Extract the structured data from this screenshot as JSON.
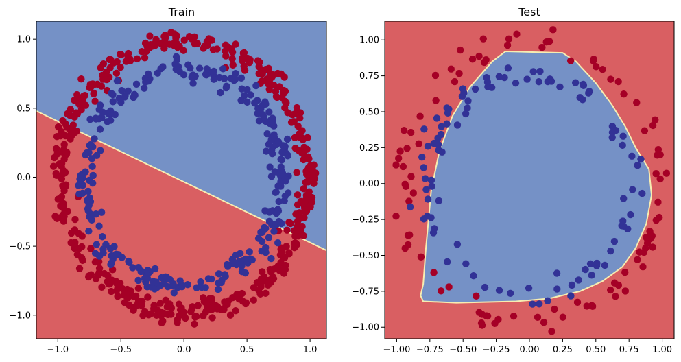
{
  "colors": {
    "blue_region": "#7591c6",
    "red_region": "#d95f62",
    "boundary": "#f7edb2",
    "blue_point": "#323296",
    "red_point": "#a50026"
  },
  "chart_data": [
    {
      "type": "scatter",
      "title": "Train",
      "xlabel": "",
      "ylabel": "",
      "xlim": [
        -1.17,
        1.13
      ],
      "ylim": [
        -1.17,
        1.13
      ],
      "xticks": [
        -1.0,
        -0.5,
        0.0,
        0.5,
        1.0
      ],
      "yticks": [
        -1.0,
        -0.5,
        0.0,
        0.5,
        1.0
      ],
      "xtick_labels": [
        "−1.0",
        "−0.5",
        "0.0",
        "0.5",
        "1.0"
      ],
      "ytick_labels": [
        "−1.0",
        "−0.5",
        "0.0",
        "0.5",
        "1.0"
      ],
      "grid": false,
      "decision_boundary": {
        "kind": "line",
        "points": [
          [
            -1.17,
            0.48
          ],
          [
            1.13,
            -0.53
          ]
        ],
        "above": "blue",
        "below": "red"
      },
      "series": [
        {
          "class": "outer_circle",
          "radius": 0.98,
          "color": "red",
          "count": 500,
          "noise": 0.035
        },
        {
          "class": "inner_circle",
          "radius": 0.78,
          "color": "blue",
          "count": 300,
          "noise": 0.035
        }
      ]
    },
    {
      "type": "scatter",
      "title": "Test",
      "xlabel": "",
      "ylabel": "",
      "xlim": [
        -1.09,
        1.09
      ],
      "ylim": [
        -1.08,
        1.13
      ],
      "xticks": [
        -1.0,
        -0.75,
        -0.5,
        -0.25,
        0.0,
        0.25,
        0.5,
        0.75,
        1.0
      ],
      "yticks": [
        -1.0,
        -0.75,
        -0.5,
        -0.25,
        0.0,
        0.25,
        0.5,
        0.75,
        1.0
      ],
      "xtick_labels": [
        "−1.00",
        "−0.75",
        "−0.50",
        "−0.25",
        "0.00",
        "0.25",
        "0.50",
        "0.75",
        "1.00"
      ],
      "ytick_labels": [
        "−1.00",
        "−0.75",
        "−0.50",
        "−0.25",
        "0.00",
        "0.25",
        "0.50",
        "0.75",
        "1.00"
      ],
      "grid": false,
      "decision_boundary": {
        "kind": "polygon",
        "inside": "blue",
        "outside": "red",
        "points": [
          [
            -0.82,
            -0.78
          ],
          [
            -0.8,
            -0.7
          ],
          [
            -0.78,
            -0.45
          ],
          [
            -0.76,
            -0.25
          ],
          [
            -0.74,
            -0.05
          ],
          [
            -0.68,
            0.22
          ],
          [
            -0.58,
            0.47
          ],
          [
            -0.45,
            0.67
          ],
          [
            -0.28,
            0.85
          ],
          [
            -0.18,
            0.92
          ],
          [
            0.25,
            0.91
          ],
          [
            0.35,
            0.85
          ],
          [
            0.5,
            0.7
          ],
          [
            0.62,
            0.55
          ],
          [
            0.72,
            0.4
          ],
          [
            0.8,
            0.25
          ],
          [
            0.9,
            0.1
          ],
          [
            0.92,
            -0.08
          ],
          [
            0.88,
            -0.28
          ],
          [
            0.8,
            -0.45
          ],
          [
            0.7,
            -0.58
          ],
          [
            0.55,
            -0.68
          ],
          [
            0.38,
            -0.75
          ],
          [
            0.15,
            -0.8
          ],
          [
            -0.1,
            -0.82
          ],
          [
            -0.55,
            -0.83
          ],
          [
            -0.8,
            -0.82
          ]
        ]
      },
      "series": [
        {
          "class": "outer_circle",
          "radius": 0.97,
          "color": "red",
          "count": 100,
          "noise": 0.04
        },
        {
          "class": "inner_circle",
          "radius": 0.77,
          "color": "blue",
          "count": 100,
          "noise": 0.04
        }
      ]
    }
  ]
}
